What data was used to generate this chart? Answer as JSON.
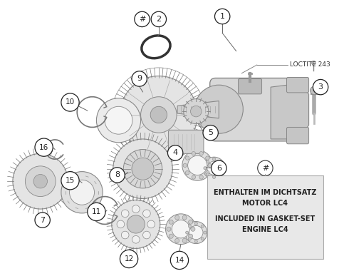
{
  "bg_color": "#ffffff",
  "box_text_line1": "ENTHALTEN IM DICHTSATZ",
  "box_text_line2": "MOTOR LC4",
  "box_text_line3": "INCLUDED IN GASKET-SET",
  "box_text_line4": "ENGINE LC4",
  "loctite_label": "LOCTITE 243",
  "line_color": "#666666",
  "gear_fill": "#e8e8e8",
  "gear_edge": "#888888",
  "dark_edge": "#444444"
}
